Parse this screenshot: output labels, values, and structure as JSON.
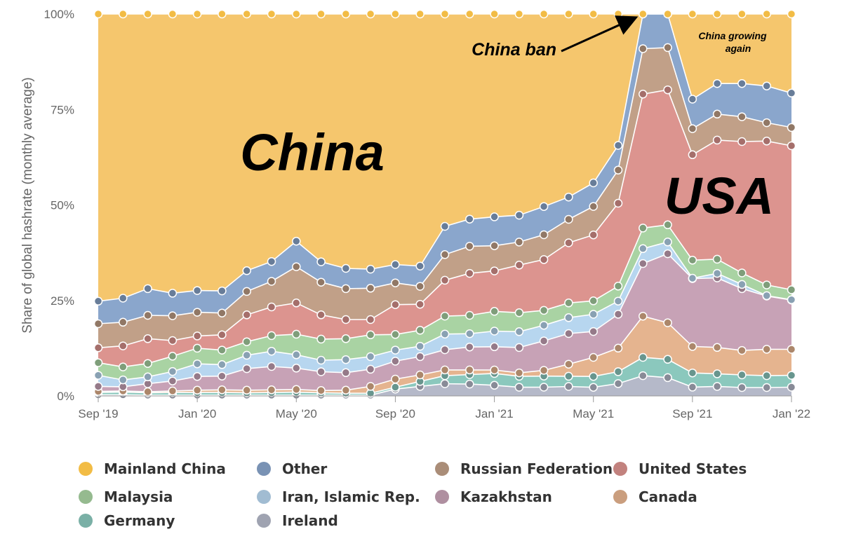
{
  "chart_data": {
    "type": "area",
    "stacked": true,
    "normalized": true,
    "title": "",
    "xlabel": "",
    "ylabel": "Share of global hashrate (monthly average)",
    "ylim": [
      0,
      100
    ],
    "y_ticks": [
      "0%",
      "25%",
      "50%",
      "75%",
      "100%"
    ],
    "x_tick_labels": [
      "Sep '19",
      "Jan '20",
      "May '20",
      "Sep '20",
      "Jan '21",
      "May '21",
      "Sep '21",
      "Jan '22"
    ],
    "grid": false,
    "legend_position": "bottom",
    "x": [
      "Sep '19",
      "Oct '19",
      "Nov '19",
      "Dec '19",
      "Jan '20",
      "Feb '20",
      "Mar '20",
      "Apr '20",
      "May '20",
      "Jun '20",
      "Jul '20",
      "Aug '20",
      "Sep '20",
      "Oct '20",
      "Nov '20",
      "Dec '20",
      "Jan '21",
      "Feb '21",
      "Mar '21",
      "Apr '21",
      "May '21",
      "Jun '21",
      "Jul '21",
      "Aug '21",
      "Sep '21",
      "Oct '21",
      "Nov '21",
      "Dec '21",
      "Jan '22"
    ],
    "series": [
      {
        "name": "Ireland",
        "color": "#b5b9c9",
        "values": [
          0.3,
          0.3,
          0.2,
          0.2,
          0.2,
          0.2,
          0.2,
          0.2,
          0.2,
          0.2,
          0.2,
          0.2,
          1.8,
          2.5,
          3.2,
          3.1,
          2.8,
          2.3,
          2.3,
          2.5,
          2.3,
          3.2,
          5.3,
          4.8,
          2.3,
          2.5,
          2.2,
          2.2,
          2.3
        ]
      },
      {
        "name": "Germany",
        "color": "#8bc8bd",
        "values": [
          0.6,
          0.7,
          0.6,
          0.7,
          0.7,
          0.7,
          0.6,
          0.7,
          0.8,
          0.6,
          0.5,
          0.5,
          0.5,
          1.3,
          2.1,
          2.5,
          3.1,
          2.9,
          2.9,
          2.7,
          2.9,
          3.1,
          4.8,
          4.8,
          3.7,
          3.3,
          3.3,
          3.1,
          3.1
        ]
      },
      {
        "name": "Canada",
        "color": "#e5b48f",
        "values": [
          0.3,
          0.3,
          0.3,
          0.4,
          0.6,
          0.7,
          0.7,
          0.7,
          0.7,
          0.6,
          0.8,
          1.8,
          2.1,
          1.7,
          1.5,
          1.2,
          0.9,
          0.9,
          1.5,
          3.2,
          5.1,
          6.1,
          10.8,
          9.6,
          6.9,
          6.9,
          6.4,
          6.9,
          6.8
        ]
      },
      {
        "name": "Kazakhstan",
        "color": "#c7a2b6",
        "values": [
          1.3,
          1.1,
          2.1,
          2.6,
          3.6,
          3.6,
          5.6,
          6.1,
          5.6,
          4.9,
          4.6,
          4.5,
          4.7,
          4.8,
          5.3,
          6.0,
          6.1,
          6.7,
          7.7,
          8.1,
          6.9,
          8.8,
          13.8,
          18.1,
          17.7,
          18.2,
          16.2,
          13.9,
          12.9
        ]
      },
      {
        "name": "Iran, Islamic Rep.",
        "color": "#b7d6ef",
        "values": [
          2.9,
          1.8,
          1.8,
          2.5,
          3.3,
          3.0,
          3.5,
          4.0,
          3.5,
          3.0,
          3.4,
          3.3,
          2.9,
          2.7,
          4.1,
          3.5,
          4.1,
          4.2,
          4.1,
          4.2,
          4.6,
          3.4,
          3.9,
          3.1,
          0.1,
          1.2,
          1.1,
          0.1,
          0.1
        ]
      },
      {
        "name": "Malaysia",
        "color": "#a9d3a3",
        "values": [
          3.3,
          3.4,
          3.5,
          4.0,
          4.1,
          3.8,
          3.5,
          4.1,
          5.4,
          5.5,
          5.5,
          5.7,
          4.1,
          4.2,
          4.7,
          4.8,
          5.2,
          5.0,
          3.9,
          3.9,
          3.6,
          3.9,
          5.4,
          4.5,
          4.7,
          3.7,
          3.0,
          2.8,
          2.6
        ]
      },
      {
        "name": "United States",
        "color": "#dc948f",
        "values": [
          3.9,
          5.5,
          6.5,
          4.1,
          3.2,
          4.0,
          7.0,
          7.5,
          8.2,
          6.3,
          5.0,
          4.0,
          7.8,
          6.8,
          9.4,
          11.0,
          10.6,
          12.6,
          13.3,
          15.9,
          17.6,
          21.5,
          35.1,
          35.4,
          27.5,
          31.2,
          34.4,
          37.6,
          37.7
        ]
      },
      {
        "name": "Russian Federation",
        "color": "#c1a088",
        "values": [
          6.3,
          6.2,
          6.1,
          6.5,
          6.2,
          5.7,
          6.1,
          6.7,
          9.5,
          8.5,
          8.1,
          8.2,
          5.7,
          4.7,
          6.7,
          7.1,
          6.6,
          6.1,
          6.5,
          6.2,
          7.6,
          8.6,
          11.9,
          11.1,
          6.8,
          6.8,
          6.5,
          4.8,
          4.8
        ]
      },
      {
        "name": "Other",
        "color": "#8aa6cc",
        "values": [
          5.9,
          6.3,
          7.0,
          5.9,
          5.7,
          5.8,
          5.4,
          5.2,
          6.7,
          5.3,
          5.3,
          5.0,
          4.8,
          5.3,
          7.4,
          7.1,
          7.6,
          7.1,
          7.4,
          5.9,
          6.3,
          6.4,
          9.1,
          8.8,
          7.7,
          8.0,
          8.7,
          9.6,
          9.0
        ]
      },
      {
        "name": "Mainland China",
        "color": "#f5c66d",
        "values": [
          75.2,
          74.4,
          71.9,
          73.1,
          72.4,
          72.5,
          66.8,
          64.8,
          59.6,
          64.5,
          66.6,
          66.8,
          65.6,
          66.0,
          55.6,
          53.7,
          53.2,
          53.2,
          50.4,
          48.4,
          45.1,
          34.1,
          0,
          0,
          22.2,
          18.2,
          18.2,
          18.8,
          20.7
        ]
      }
    ],
    "legend_order": [
      "Mainland China",
      "Other",
      "Russian Federation",
      "United States",
      "Malaysia",
      "Iran, Islamic Rep.",
      "Kazakhstan",
      "Canada",
      "Germany",
      "Ireland"
    ],
    "annotations": {
      "china_label": "China",
      "usa_label": "USA",
      "china_ban": "China ban",
      "china_growing_line1": "China growing",
      "china_growing_line2": "again"
    }
  }
}
